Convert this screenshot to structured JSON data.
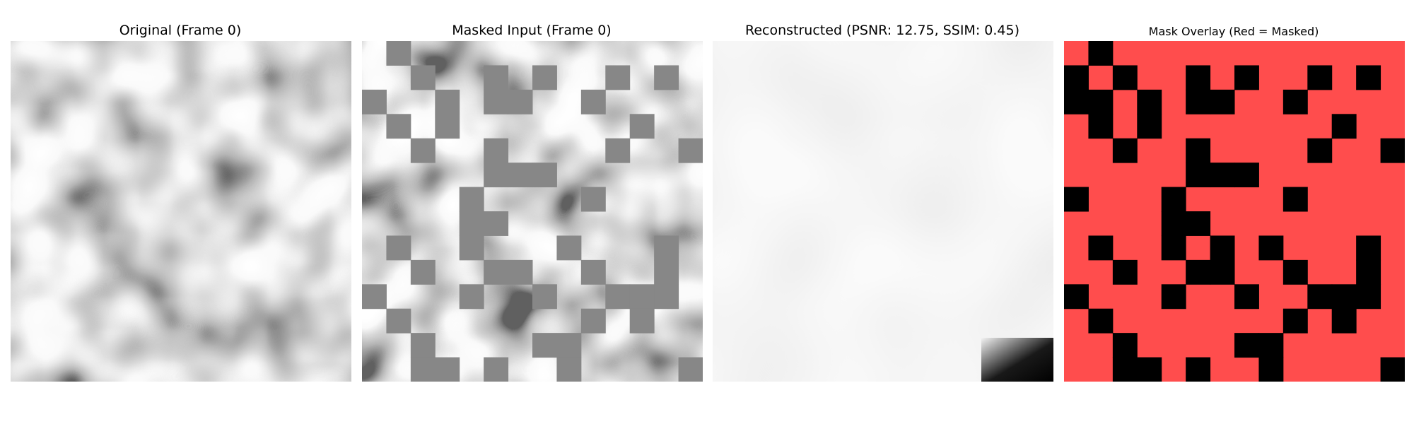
{
  "panels": [
    {
      "title": "Original (Frame 0)"
    },
    {
      "title": "Masked Input (Frame 0)"
    },
    {
      "title": "Reconstructed (PSNR: 12.75, SSIM: 0.45)"
    },
    {
      "title": "Mask Overlay (Red = Masked)"
    }
  ],
  "grid_size": 14,
  "colors": {
    "mask_fill": "#878787",
    "overlay_masked": "#ff4d4d",
    "overlay_unmasked": "#000000"
  },
  "visible_cells": [
    [
      0,
      1
    ],
    [
      1,
      0
    ],
    [
      1,
      2
    ],
    [
      1,
      5
    ],
    [
      1,
      7
    ],
    [
      1,
      10
    ],
    [
      1,
      12
    ],
    [
      2,
      0
    ],
    [
      2,
      1
    ],
    [
      2,
      3
    ],
    [
      2,
      5
    ],
    [
      2,
      6
    ],
    [
      2,
      9
    ],
    [
      3,
      1
    ],
    [
      3,
      3
    ],
    [
      3,
      11
    ],
    [
      4,
      2
    ],
    [
      4,
      5
    ],
    [
      4,
      10
    ],
    [
      4,
      13
    ],
    [
      5,
      5
    ],
    [
      5,
      6
    ],
    [
      5,
      7
    ],
    [
      6,
      0
    ],
    [
      6,
      4
    ],
    [
      6,
      9
    ],
    [
      7,
      4
    ],
    [
      7,
      5
    ],
    [
      8,
      1
    ],
    [
      8,
      4
    ],
    [
      8,
      6
    ],
    [
      8,
      8
    ],
    [
      8,
      12
    ],
    [
      9,
      2
    ],
    [
      9,
      5
    ],
    [
      9,
      6
    ],
    [
      9,
      9
    ],
    [
      9,
      12
    ],
    [
      10,
      0
    ],
    [
      10,
      4
    ],
    [
      10,
      7
    ],
    [
      10,
      10
    ],
    [
      10,
      11
    ],
    [
      10,
      12
    ],
    [
      11,
      1
    ],
    [
      11,
      9
    ],
    [
      11,
      11
    ],
    [
      12,
      2
    ],
    [
      12,
      7
    ],
    [
      12,
      8
    ],
    [
      13,
      2
    ],
    [
      13,
      3
    ],
    [
      13,
      5
    ],
    [
      13,
      8
    ],
    [
      13,
      13
    ]
  ]
}
